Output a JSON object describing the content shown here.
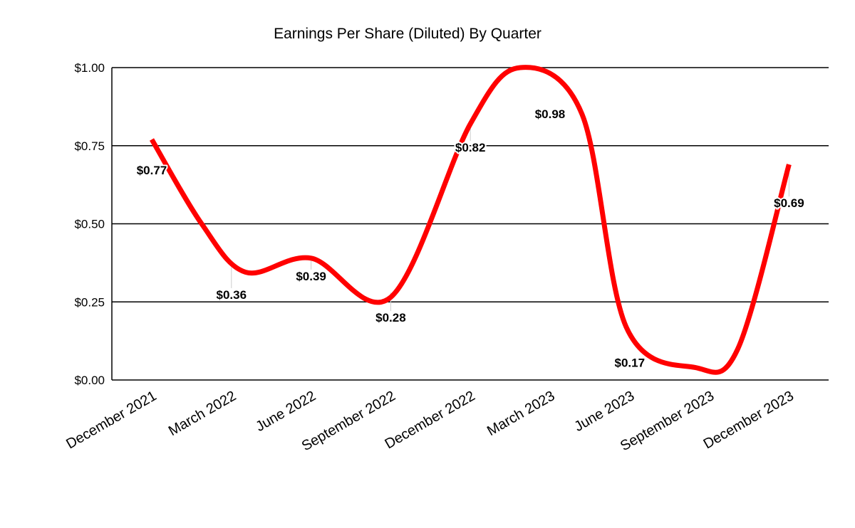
{
  "chart_data": {
    "type": "line",
    "title": "Earnings Per Share (Diluted) By Quarter",
    "xlabel": "",
    "ylabel": "",
    "categories": [
      "December 2021",
      "March 2022",
      "June 2022",
      "September 2022",
      "December 2022",
      "March 2023",
      "June 2023",
      "September 2023",
      "December 2023"
    ],
    "series": [
      {
        "values": [
          0.77,
          0.36,
          0.39,
          0.28,
          0.82,
          0.98,
          0.17,
          null,
          0.69
        ],
        "data_labels": [
          "$0.77",
          "$0.36",
          "$0.39",
          "$0.28",
          "$0.82",
          "$0.98",
          "$0.17",
          "",
          "$0.69"
        ],
        "color": "#ff0000",
        "smooth": true
      }
    ],
    "y_ticks": [
      "$0.00",
      "$0.25",
      "$0.50",
      "$0.75",
      "$1.00"
    ],
    "y_tick_values": [
      0,
      0.25,
      0.5,
      0.75,
      1.0
    ],
    "ylim": [
      0,
      1.0
    ],
    "grid": true,
    "legend": "none"
  }
}
